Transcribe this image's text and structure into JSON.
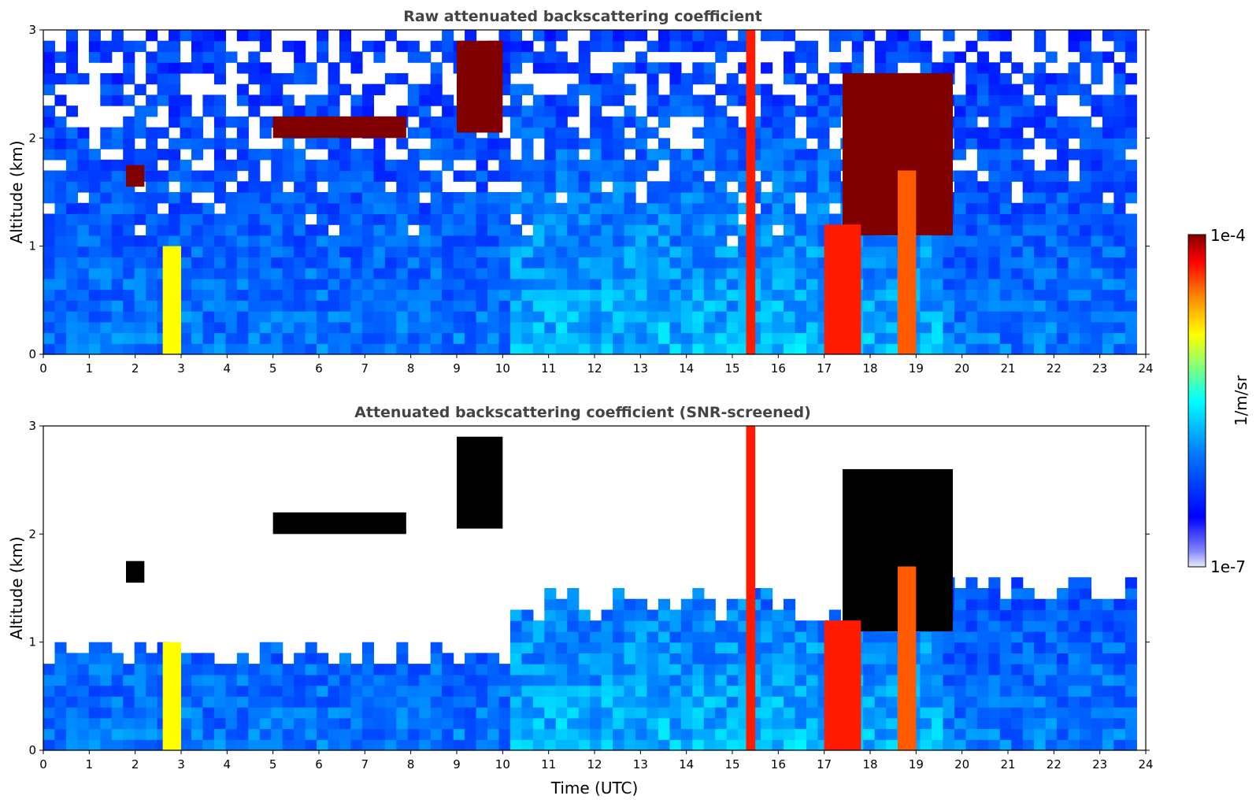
{
  "figure": {
    "colorbar": {
      "label": "1/m/sr",
      "max_label": "1e-4",
      "min_label": "1e-7",
      "range": [
        1e-07,
        0.0001
      ],
      "colormap": [
        "#e8ecfa",
        "#0000ff",
        "#0080ff",
        "#00ffff",
        "#80ff80",
        "#ffff00",
        "#ff8000",
        "#ff0000",
        "#800000"
      ]
    }
  },
  "chart_data": [
    {
      "type": "heatmap",
      "title": "Raw attenuated backscattering coefficient",
      "xlabel": "",
      "ylabel": "Altitude (km)",
      "xlim": [
        0,
        24
      ],
      "ylim": [
        0,
        3
      ],
      "xticks": [
        "0",
        "1",
        "2",
        "3",
        "4",
        "5",
        "6",
        "7",
        "8",
        "9",
        "10",
        "11",
        "12",
        "13",
        "14",
        "15",
        "16",
        "17",
        "18",
        "19",
        "20",
        "21",
        "22",
        "23",
        "24"
      ],
      "yticks": [
        "0",
        "1",
        "2",
        "3"
      ],
      "colorscale": "log",
      "screened": false,
      "features": [
        {
          "kind": "cloud_layer",
          "x": [
            1.8,
            2.2
          ],
          "y": [
            1.55,
            1.75
          ],
          "level": 1.0
        },
        {
          "kind": "cloud_layer",
          "x": [
            5.0,
            7.9
          ],
          "y": [
            2.0,
            2.2
          ],
          "level": 1.0
        },
        {
          "kind": "cloud_layer",
          "x": [
            9.0,
            10.0
          ],
          "y": [
            2.05,
            2.9
          ],
          "level": 1.0
        },
        {
          "kind": "cloud_layer",
          "x": [
            17.4,
            19.8
          ],
          "y": [
            1.1,
            2.6
          ],
          "level": 1.0
        },
        {
          "kind": "precip_column",
          "x": [
            2.6,
            3.0
          ],
          "y": [
            0.0,
            1.0
          ],
          "level": 0.7
        },
        {
          "kind": "precip_column",
          "x": [
            15.3,
            15.5
          ],
          "y": [
            0.0,
            3.0
          ],
          "level": 0.9
        },
        {
          "kind": "precip_column",
          "x": [
            17.0,
            17.8
          ],
          "y": [
            0.0,
            1.2
          ],
          "level": 0.9
        },
        {
          "kind": "precip_column",
          "x": [
            18.6,
            19.0
          ],
          "y": [
            0.0,
            1.7
          ],
          "level": 0.85
        }
      ]
    },
    {
      "type": "heatmap",
      "title": "Attenuated backscattering coefficient (SNR-screened)",
      "xlabel": "Time (UTC)",
      "ylabel": "Altitude (km)",
      "xlim": [
        0,
        24
      ],
      "ylim": [
        0,
        3
      ],
      "xticks": [
        "0",
        "1",
        "2",
        "3",
        "4",
        "5",
        "6",
        "7",
        "8",
        "9",
        "10",
        "11",
        "12",
        "13",
        "14",
        "15",
        "16",
        "17",
        "18",
        "19",
        "20",
        "21",
        "22",
        "23",
        "24"
      ],
      "yticks": [
        "0",
        "1",
        "2",
        "3"
      ],
      "colorscale": "log",
      "screened": true,
      "features": [
        {
          "kind": "cloud_layer",
          "x": [
            1.8,
            2.2
          ],
          "y": [
            1.55,
            1.75
          ],
          "level": 1.0
        },
        {
          "kind": "cloud_layer",
          "x": [
            5.0,
            7.9
          ],
          "y": [
            2.0,
            2.2
          ],
          "level": 1.0
        },
        {
          "kind": "cloud_layer",
          "x": [
            9.0,
            10.0
          ],
          "y": [
            2.05,
            2.9
          ],
          "level": 1.0
        },
        {
          "kind": "cloud_layer",
          "x": [
            17.4,
            19.8
          ],
          "y": [
            1.1,
            2.6
          ],
          "level": 1.0
        },
        {
          "kind": "precip_column",
          "x": [
            2.6,
            3.0
          ],
          "y": [
            0.0,
            1.0
          ],
          "level": 0.7
        },
        {
          "kind": "precip_column",
          "x": [
            15.3,
            15.5
          ],
          "y": [
            0.0,
            3.0
          ],
          "level": 0.9
        },
        {
          "kind": "precip_column",
          "x": [
            17.0,
            17.8
          ],
          "y": [
            0.0,
            1.2
          ],
          "level": 0.9
        },
        {
          "kind": "precip_column",
          "x": [
            18.6,
            19.0
          ],
          "y": [
            0.0,
            1.7
          ],
          "level": 0.85
        }
      ]
    }
  ]
}
